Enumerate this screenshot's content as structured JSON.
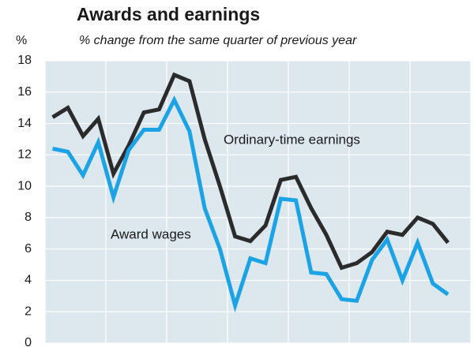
{
  "chart_data": {
    "type": "line",
    "title": "Awards and earnings",
    "subtitle": "% change from the same quarter of previous year",
    "y_label": "%",
    "categories": [
      null,
      null,
      null,
      null,
      null,
      null,
      null,
      null,
      null,
      null,
      null,
      null,
      null,
      null,
      null,
      null,
      null,
      null,
      null,
      null,
      null,
      null,
      null,
      null,
      null,
      null,
      null
    ],
    "series": [
      {
        "name": "Ordinary-time earnings",
        "color": "#2b2b2b",
        "values": [
          14.4,
          15.0,
          13.2,
          14.3,
          10.8,
          12.6,
          14.7,
          14.9,
          17.1,
          16.7,
          13.0,
          10.0,
          6.8,
          6.5,
          7.5,
          10.4,
          10.6,
          8.6,
          6.9,
          4.8,
          5.1,
          5.8,
          7.1,
          6.9,
          8.0,
          7.6,
          6.4
        ]
      },
      {
        "name": "Award wages",
        "color": "#1ba3e6",
        "values": [
          12.4,
          12.2,
          10.7,
          12.8,
          9.3,
          12.3,
          13.6,
          13.6,
          15.5,
          13.5,
          8.6,
          6.0,
          2.4,
          5.4,
          5.1,
          9.2,
          9.1,
          4.5,
          4.4,
          2.8,
          2.7,
          5.3,
          6.6,
          4.0,
          6.4,
          3.8,
          3.1
        ]
      }
    ],
    "ylim": [
      0,
      18
    ],
    "yticks": [
      0,
      2,
      4,
      6,
      8,
      10,
      12,
      14,
      16,
      18
    ],
    "grid": true
  }
}
